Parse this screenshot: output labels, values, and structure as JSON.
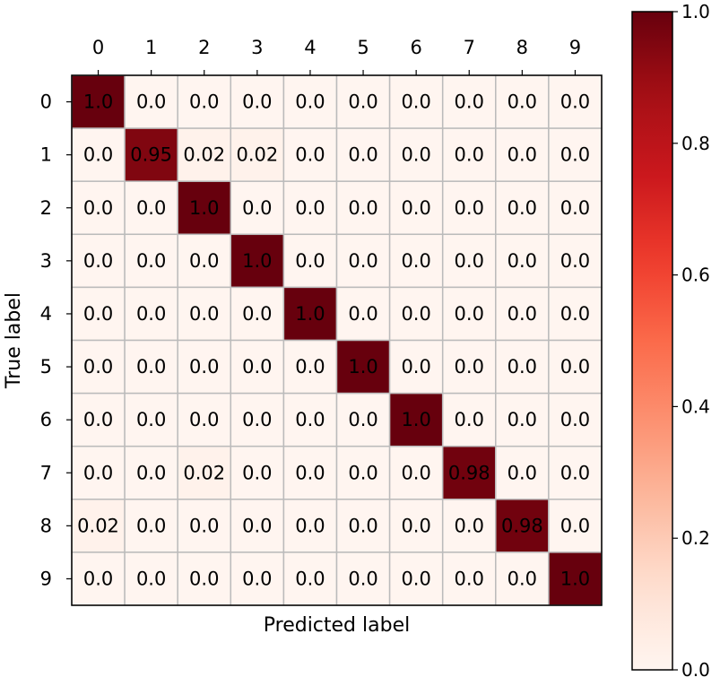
{
  "chart_data": {
    "type": "heatmap",
    "xlabel": "Predicted label",
    "ylabel": "True label",
    "x_categories": [
      "0",
      "1",
      "2",
      "3",
      "4",
      "5",
      "6",
      "7",
      "8",
      "9"
    ],
    "y_categories": [
      "0",
      "1",
      "2",
      "3",
      "4",
      "5",
      "6",
      "7",
      "8",
      "9"
    ],
    "values": [
      [
        1.0,
        0.0,
        0.0,
        0.0,
        0.0,
        0.0,
        0.0,
        0.0,
        0.0,
        0.0
      ],
      [
        0.0,
        0.95,
        0.02,
        0.02,
        0.0,
        0.0,
        0.0,
        0.0,
        0.0,
        0.0
      ],
      [
        0.0,
        0.0,
        1.0,
        0.0,
        0.0,
        0.0,
        0.0,
        0.0,
        0.0,
        0.0
      ],
      [
        0.0,
        0.0,
        0.0,
        1.0,
        0.0,
        0.0,
        0.0,
        0.0,
        0.0,
        0.0
      ],
      [
        0.0,
        0.0,
        0.0,
        0.0,
        1.0,
        0.0,
        0.0,
        0.0,
        0.0,
        0.0
      ],
      [
        0.0,
        0.0,
        0.0,
        0.0,
        0.0,
        1.0,
        0.0,
        0.0,
        0.0,
        0.0
      ],
      [
        0.0,
        0.0,
        0.0,
        0.0,
        0.0,
        0.0,
        1.0,
        0.0,
        0.0,
        0.0
      ],
      [
        0.0,
        0.0,
        0.02,
        0.0,
        0.0,
        0.0,
        0.0,
        0.98,
        0.0,
        0.0
      ],
      [
        0.02,
        0.0,
        0.0,
        0.0,
        0.0,
        0.0,
        0.0,
        0.0,
        0.98,
        0.0
      ],
      [
        0.0,
        0.0,
        0.0,
        0.0,
        0.0,
        0.0,
        0.0,
        0.0,
        0.0,
        1.0
      ]
    ],
    "cell_labels": [
      [
        "1.0",
        "0.0",
        "0.0",
        "0.0",
        "0.0",
        "0.0",
        "0.0",
        "0.0",
        "0.0",
        "0.0"
      ],
      [
        "0.0",
        "0.95",
        "0.02",
        "0.02",
        "0.0",
        "0.0",
        "0.0",
        "0.0",
        "0.0",
        "0.0"
      ],
      [
        "0.0",
        "0.0",
        "1.0",
        "0.0",
        "0.0",
        "0.0",
        "0.0",
        "0.0",
        "0.0",
        "0.0"
      ],
      [
        "0.0",
        "0.0",
        "0.0",
        "1.0",
        "0.0",
        "0.0",
        "0.0",
        "0.0",
        "0.0",
        "0.0"
      ],
      [
        "0.0",
        "0.0",
        "0.0",
        "0.0",
        "1.0",
        "0.0",
        "0.0",
        "0.0",
        "0.0",
        "0.0"
      ],
      [
        "0.0",
        "0.0",
        "0.0",
        "0.0",
        "0.0",
        "1.0",
        "0.0",
        "0.0",
        "0.0",
        "0.0"
      ],
      [
        "0.0",
        "0.0",
        "0.0",
        "0.0",
        "0.0",
        "0.0",
        "1.0",
        "0.0",
        "0.0",
        "0.0"
      ],
      [
        "0.0",
        "0.0",
        "0.02",
        "0.0",
        "0.0",
        "0.0",
        "0.0",
        "0.98",
        "0.0",
        "0.0"
      ],
      [
        "0.02",
        "0.0",
        "0.0",
        "0.0",
        "0.0",
        "0.0",
        "0.0",
        "0.0",
        "0.98",
        "0.0"
      ],
      [
        "0.0",
        "0.0",
        "0.0",
        "0.0",
        "0.0",
        "0.0",
        "0.0",
        "0.0",
        "0.0",
        "1.0"
      ]
    ],
    "x_axis_position": "top",
    "colormap": "Reds",
    "colormap_low": "#fff5f0",
    "colormap_high": "#67000d",
    "grid_color": "#bbbbbb",
    "colorbar": {
      "vmin": 0.0,
      "vmax": 1.0,
      "ticks": [
        0.0,
        0.2,
        0.4,
        0.6,
        0.8,
        1.0
      ],
      "tick_labels": [
        "0.0",
        "0.2",
        "0.4",
        "0.6",
        "0.8",
        "1.0"
      ],
      "position": "right"
    }
  }
}
